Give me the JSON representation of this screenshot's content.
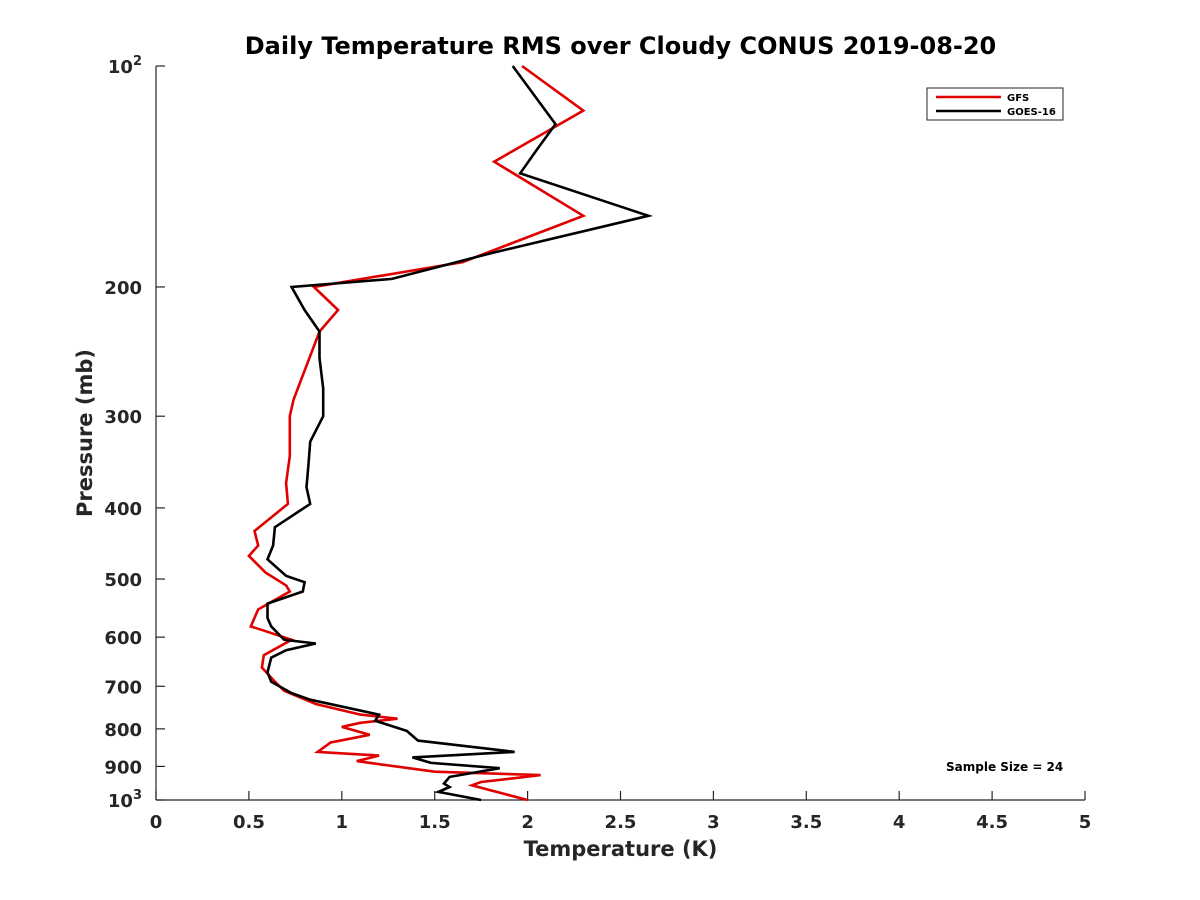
{
  "chart_data": {
    "type": "line",
    "title": "Daily Temperature RMS over Cloudy CONUS 2019-08-20",
    "xlabel": "Temperature (K)",
    "ylabel": "Pressure (mb)",
    "xlim": [
      0,
      5
    ],
    "ylim": [
      100,
      1000
    ],
    "y_scale": "log",
    "y_reversed": true,
    "grid": false,
    "legend_position": "top-right",
    "x_ticks": [
      0,
      0.5,
      1,
      1.5,
      2,
      2.5,
      3,
      3.5,
      4,
      4.5,
      5
    ],
    "x_tick_labels": [
      "0",
      "0.5",
      "1",
      "1.5",
      "2",
      "2.5",
      "3",
      "3.5",
      "4",
      "4.5",
      "5"
    ],
    "y_ticks": [
      100,
      200,
      300,
      400,
      500,
      600,
      700,
      800,
      900,
      1000
    ],
    "y_tick_labels": [
      {
        "base": "10",
        "exp": "2"
      },
      {
        "base": "200",
        "exp": ""
      },
      {
        "base": "300",
        "exp": ""
      },
      {
        "base": "400",
        "exp": ""
      },
      {
        "base": "500",
        "exp": ""
      },
      {
        "base": "600",
        "exp": ""
      },
      {
        "base": "700",
        "exp": ""
      },
      {
        "base": "800",
        "exp": ""
      },
      {
        "base": "900",
        "exp": ""
      },
      {
        "base": "10",
        "exp": "3"
      }
    ],
    "annotation": "Sample Size = 24",
    "series": [
      {
        "name": "GFS",
        "color": "#e00000",
        "points": [
          [
            1.97,
            100
          ],
          [
            2.3,
            115
          ],
          [
            1.82,
            135
          ],
          [
            2.3,
            160
          ],
          [
            1.65,
            185
          ],
          [
            0.85,
            200
          ],
          [
            0.98,
            215
          ],
          [
            0.88,
            230
          ],
          [
            0.8,
            260
          ],
          [
            0.74,
            285
          ],
          [
            0.72,
            300
          ],
          [
            0.72,
            340
          ],
          [
            0.7,
            370
          ],
          [
            0.71,
            395
          ],
          [
            0.53,
            430
          ],
          [
            0.55,
            450
          ],
          [
            0.5,
            465
          ],
          [
            0.59,
            490
          ],
          [
            0.7,
            510
          ],
          [
            0.72,
            520
          ],
          [
            0.55,
            550
          ],
          [
            0.51,
            580
          ],
          [
            0.6,
            590
          ],
          [
            0.73,
            605
          ],
          [
            0.58,
            635
          ],
          [
            0.57,
            660
          ],
          [
            0.64,
            690
          ],
          [
            0.69,
            710
          ],
          [
            0.86,
            740
          ],
          [
            1.1,
            765
          ],
          [
            1.3,
            775
          ],
          [
            1.1,
            785
          ],
          [
            1.0,
            795
          ],
          [
            1.15,
            815
          ],
          [
            0.94,
            835
          ],
          [
            0.87,
            860
          ],
          [
            1.2,
            870
          ],
          [
            1.08,
            885
          ],
          [
            1.5,
            915
          ],
          [
            2.07,
            925
          ],
          [
            1.75,
            945
          ],
          [
            1.7,
            955
          ],
          [
            1.8,
            970
          ],
          [
            2.0,
            1000
          ]
        ]
      },
      {
        "name": "GOES-16",
        "color": "#000000",
        "points": [
          [
            1.92,
            100
          ],
          [
            2.15,
            120
          ],
          [
            2.05,
            130
          ],
          [
            1.96,
            140
          ],
          [
            2.65,
            160
          ],
          [
            1.8,
            180
          ],
          [
            1.27,
            195
          ],
          [
            0.73,
            200
          ],
          [
            0.8,
            215
          ],
          [
            0.88,
            230
          ],
          [
            0.88,
            250
          ],
          [
            0.9,
            275
          ],
          [
            0.9,
            300
          ],
          [
            0.83,
            325
          ],
          [
            0.82,
            350
          ],
          [
            0.81,
            375
          ],
          [
            0.83,
            395
          ],
          [
            0.64,
            425
          ],
          [
            0.63,
            450
          ],
          [
            0.6,
            470
          ],
          [
            0.7,
            495
          ],
          [
            0.8,
            505
          ],
          [
            0.79,
            520
          ],
          [
            0.6,
            540
          ],
          [
            0.6,
            565
          ],
          [
            0.62,
            580
          ],
          [
            0.69,
            605
          ],
          [
            0.86,
            612
          ],
          [
            0.7,
            625
          ],
          [
            0.62,
            640
          ],
          [
            0.6,
            670
          ],
          [
            0.62,
            690
          ],
          [
            0.73,
            715
          ],
          [
            0.83,
            730
          ],
          [
            1.2,
            765
          ],
          [
            1.18,
            780
          ],
          [
            1.35,
            805
          ],
          [
            1.41,
            830
          ],
          [
            1.93,
            860
          ],
          [
            1.38,
            875
          ],
          [
            1.48,
            890
          ],
          [
            1.85,
            905
          ],
          [
            1.58,
            930
          ],
          [
            1.55,
            950
          ],
          [
            1.58,
            960
          ],
          [
            1.52,
            975
          ],
          [
            1.75,
            1000
          ]
        ]
      }
    ]
  }
}
